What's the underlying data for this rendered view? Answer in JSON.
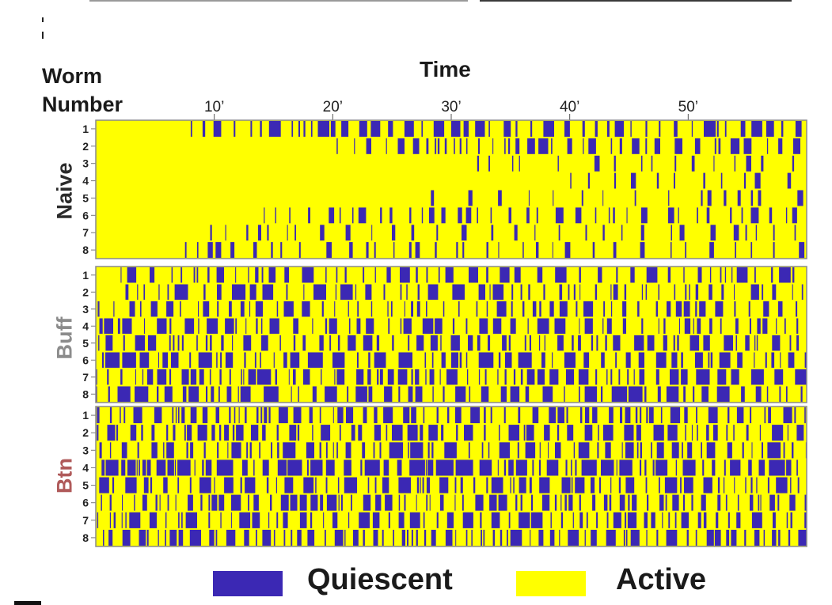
{
  "chart_data": {
    "type": "heatmap",
    "title": "Time",
    "ylabel_line1": "Worm",
    "ylabel_line2": "Number",
    "x_ticks": [
      "10’",
      "20’",
      "30’",
      "40’",
      "50’"
    ],
    "x_tick_minutes": [
      10,
      20,
      30,
      40,
      50
    ],
    "x_range_minutes": [
      0,
      60
    ],
    "row_labels": [
      "1",
      "2",
      "3",
      "4",
      "5",
      "6",
      "7",
      "8"
    ],
    "states": [
      "Quiescent",
      "Active"
    ],
    "groups": [
      {
        "name": "Naive",
        "label_color": "#2b2b2b",
        "quiescent_fraction": [
          0.36,
          0.3,
          0.1,
          0.12,
          0.1,
          0.22,
          0.14,
          0.14
        ],
        "bout_length": [
          6,
          5,
          3,
          3,
          3,
          4,
          3,
          3
        ],
        "onset_minute": [
          8,
          20,
          32,
          40,
          28,
          14,
          9,
          7
        ]
      },
      {
        "name": "Buff",
        "label_color": "#8c8c8c",
        "quiescent_fraction": [
          0.34,
          0.38,
          0.3,
          0.36,
          0.34,
          0.48,
          0.44,
          0.46
        ],
        "bout_length": [
          6,
          7,
          5,
          6,
          5,
          8,
          7,
          8
        ],
        "onset_minute": [
          2,
          2,
          0,
          0,
          0,
          0,
          0,
          0
        ]
      },
      {
        "name": "Btn",
        "label_color": "#b05a5a",
        "quiescent_fraction": [
          0.36,
          0.4,
          0.44,
          0.58,
          0.46,
          0.38,
          0.42,
          0.46
        ],
        "bout_length": [
          5,
          6,
          7,
          9,
          7,
          5,
          6,
          6
        ],
        "onset_minute": [
          0,
          0,
          0,
          0,
          0,
          0,
          0,
          0
        ]
      }
    ],
    "colors": {
      "quiescent": "#3b28b4",
      "active": "#ffff00",
      "frame": "#8a8a8a"
    }
  },
  "legend": [
    {
      "label": "Quiescent",
      "color": "#3b28b4"
    },
    {
      "label": "Active",
      "color": "#ffff00"
    }
  ]
}
